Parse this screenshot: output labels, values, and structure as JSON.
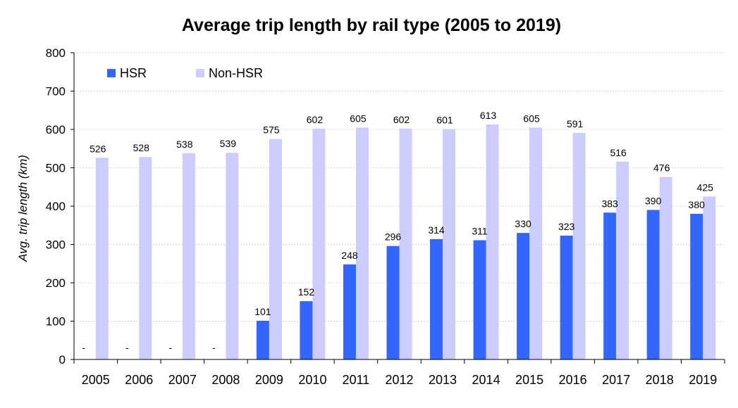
{
  "chart_data": {
    "type": "bar",
    "title": "Average trip length by rail type (2005 to 2019)",
    "xlabel": "",
    "ylabel": "Avg. trip length (km)",
    "ylim": [
      0,
      800
    ],
    "yticks": [
      0,
      100,
      200,
      300,
      400,
      500,
      600,
      700,
      800
    ],
    "grid": true,
    "legend_position": "top-left",
    "categories": [
      "2005",
      "2006",
      "2007",
      "2008",
      "2009",
      "2010",
      "2011",
      "2012",
      "2013",
      "2014",
      "2015",
      "2016",
      "2017",
      "2018",
      "2019"
    ],
    "missing_label": "-",
    "series": [
      {
        "name": "HSR",
        "color": "#3366ff",
        "values": [
          null,
          null,
          null,
          null,
          101,
          152,
          248,
          296,
          314,
          311,
          330,
          323,
          383,
          390,
          380
        ]
      },
      {
        "name": "Non-HSR",
        "color": "#ccccff",
        "values": [
          526,
          528,
          538,
          539,
          575,
          602,
          605,
          602,
          601,
          613,
          605,
          591,
          516,
          476,
          425
        ]
      }
    ]
  }
}
